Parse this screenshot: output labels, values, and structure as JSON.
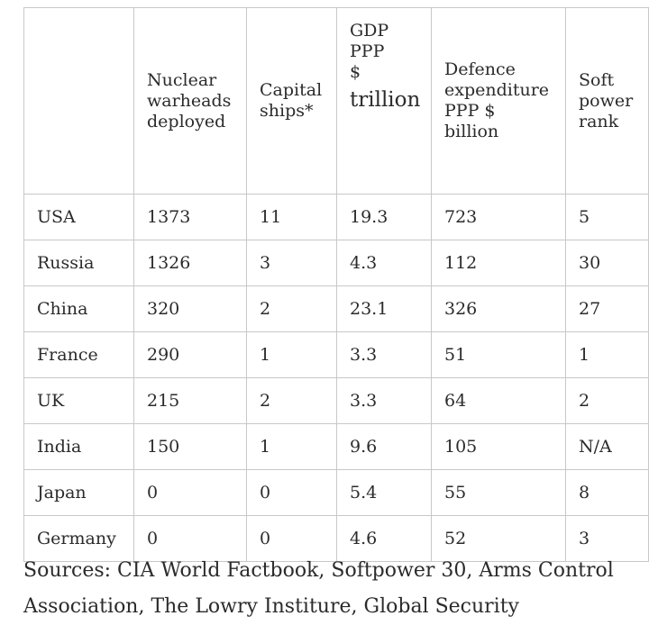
{
  "table": {
    "headers": [
      {
        "key": "country",
        "label": ""
      },
      {
        "key": "warheads",
        "label": "Nuclear\nwarheads\ndeployed"
      },
      {
        "key": "ships",
        "label": "Capital\nships*"
      },
      {
        "key": "gdp",
        "label_top": "GDP\nPPP\n$",
        "label_bottom": "trillion"
      },
      {
        "key": "defence",
        "label": "Defence\nexpenditure\nPPP $\nbillion"
      },
      {
        "key": "soft",
        "label": "Soft\npower\nrank"
      }
    ],
    "rows": [
      {
        "country": "USA",
        "warheads": "1373",
        "ships": "11",
        "gdp": "19.3",
        "defence": "723",
        "soft": "5"
      },
      {
        "country": "Russia",
        "warheads": "1326",
        "ships": "3",
        "gdp": "4.3",
        "defence": "112",
        "soft": "30"
      },
      {
        "country": "China",
        "warheads": "320",
        "ships": "2",
        "gdp": "23.1",
        "defence": "326",
        "soft": "27"
      },
      {
        "country": "France",
        "warheads": "290",
        "ships": "1",
        "gdp": "3.3",
        "defence": "51",
        "soft": "1"
      },
      {
        "country": "UK",
        "warheads": "215",
        "ships": "2",
        "gdp": "3.3",
        "defence": "64",
        "soft": "2"
      },
      {
        "country": "India",
        "warheads": "150",
        "ships": "1",
        "gdp": "9.6",
        "defence": "105",
        "soft": "N/A"
      },
      {
        "country": "Japan",
        "warheads": "0",
        "ships": "0",
        "gdp": "5.4",
        "defence": "55",
        "soft": "8"
      },
      {
        "country": "Germany",
        "warheads": "0",
        "ships": "0",
        "gdp": "4.6",
        "defence": "52",
        "soft": "3"
      }
    ]
  },
  "sources": "Sources: CIA World Factbook, Softpower 30, Arms Control Association, The Lowry Institure, Global Security"
}
